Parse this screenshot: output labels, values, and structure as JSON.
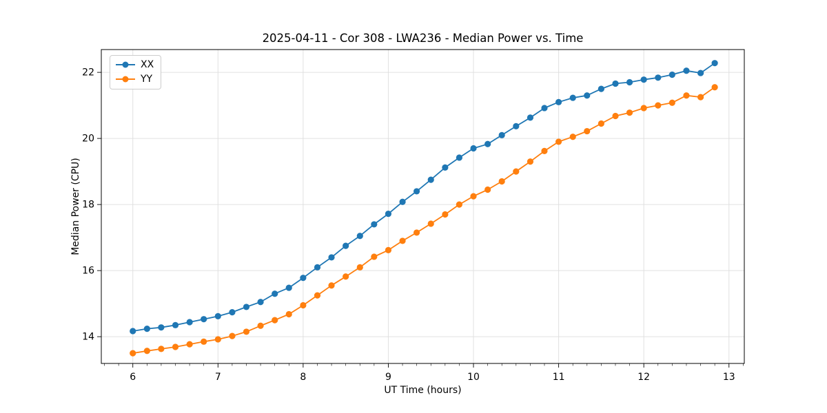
{
  "figure": {
    "background": "#ffffff"
  },
  "chart_data": {
    "type": "line",
    "title": "2025-04-11 - Cor 308 - LWA236 - Median Power vs. Time",
    "xlabel": "UT Time (hours)",
    "ylabel": "Median Power (CPU)",
    "xlim": [
      5.63,
      13.18
    ],
    "ylim": [
      13.19,
      22.69
    ],
    "xticks": [
      6,
      7,
      8,
      9,
      10,
      11,
      12,
      13
    ],
    "yticks": [
      14,
      16,
      18,
      20,
      22
    ],
    "x_minor_step": 0.1667,
    "grid": true,
    "grid_color": "#e0e0e0",
    "legend_position": "upper-left",
    "x": [
      6.0,
      6.167,
      6.333,
      6.5,
      6.667,
      6.833,
      7.0,
      7.167,
      7.333,
      7.5,
      7.667,
      7.833,
      8.0,
      8.167,
      8.333,
      8.5,
      8.667,
      8.833,
      9.0,
      9.167,
      9.333,
      9.5,
      9.667,
      9.833,
      10.0,
      10.167,
      10.333,
      10.5,
      10.667,
      10.833,
      11.0,
      11.167,
      11.333,
      11.5,
      11.667,
      11.833,
      12.0,
      12.167,
      12.333,
      12.5,
      12.667,
      12.833
    ],
    "series": [
      {
        "name": "XX",
        "color": "#1f77b4",
        "marker": "circle",
        "values": [
          14.17,
          14.24,
          14.28,
          14.35,
          14.44,
          14.53,
          14.62,
          14.74,
          14.9,
          15.05,
          15.3,
          15.48,
          15.78,
          16.1,
          16.4,
          16.75,
          17.05,
          17.4,
          17.72,
          18.08,
          18.4,
          18.75,
          19.12,
          19.42,
          19.7,
          19.83,
          20.1,
          20.37,
          20.63,
          20.92,
          21.1,
          21.23,
          21.3,
          21.5,
          21.66,
          21.7,
          21.78,
          21.84,
          21.93,
          22.05,
          21.98,
          22.28
        ]
      },
      {
        "name": "YY",
        "color": "#ff7f0e",
        "marker": "circle",
        "values": [
          13.5,
          13.57,
          13.63,
          13.69,
          13.77,
          13.85,
          13.92,
          14.02,
          14.15,
          14.33,
          14.5,
          14.68,
          14.95,
          15.25,
          15.55,
          15.82,
          16.1,
          16.42,
          16.62,
          16.9,
          17.15,
          17.42,
          17.7,
          18.0,
          18.25,
          18.45,
          18.7,
          19.0,
          19.3,
          19.62,
          19.9,
          20.05,
          20.22,
          20.45,
          20.68,
          20.78,
          20.92,
          21.0,
          21.08,
          21.3,
          21.25,
          21.55
        ]
      }
    ]
  }
}
